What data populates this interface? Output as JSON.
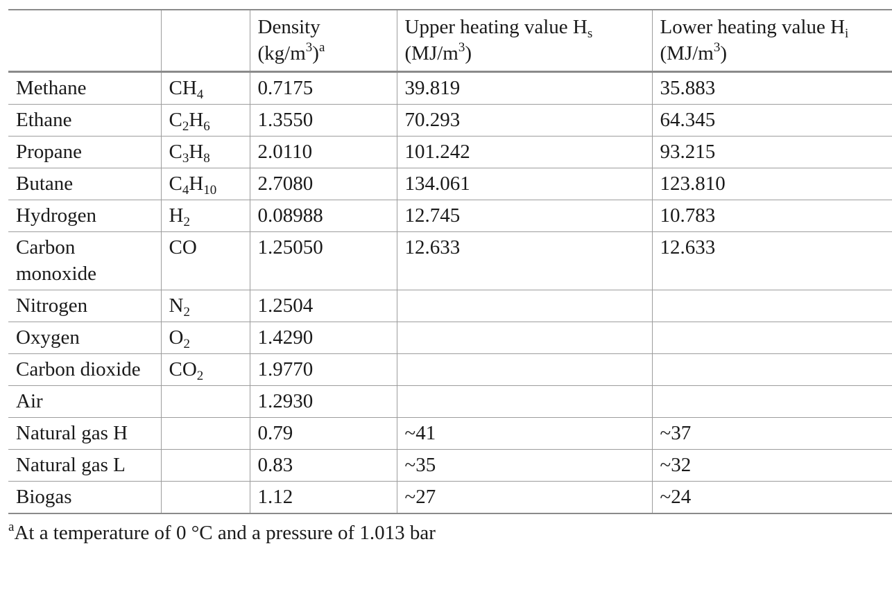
{
  "header": {
    "col0": "",
    "col1": "",
    "density": {
      "label": "Density",
      "unit_pre": "(kg/m",
      "unit_exp": "3",
      "unit_post": ")",
      "footnote_mark": "a"
    },
    "upper": {
      "label": "Upper heating value H",
      "sub": "s",
      "unit_pre": "(MJ/m",
      "unit_exp": "3",
      "unit_post": ")"
    },
    "lower": {
      "label": "Lower heating value H",
      "sub": "i",
      "unit_pre": "(MJ/m",
      "unit_exp": "3",
      "unit_post": ")"
    }
  },
  "rows": [
    {
      "name": "Methane",
      "formula": [
        [
          "CH",
          "4"
        ]
      ],
      "density": "0.7175",
      "upper": "39.819",
      "lower": "35.883"
    },
    {
      "name": "Ethane",
      "formula": [
        [
          "C",
          "2"
        ],
        [
          "H",
          "6"
        ]
      ],
      "density": "1.3550",
      "upper": "70.293",
      "lower": "64.345"
    },
    {
      "name": "Propane",
      "formula": [
        [
          "C",
          "3"
        ],
        [
          "H",
          "8"
        ]
      ],
      "density": "2.0110",
      "upper": "101.242",
      "lower": "93.215"
    },
    {
      "name": "Butane",
      "formula": [
        [
          "C",
          "4"
        ],
        [
          "H",
          "10"
        ]
      ],
      "density": "2.7080",
      "upper": "134.061",
      "lower": "123.810"
    },
    {
      "name": "Hydrogen",
      "formula": [
        [
          "H",
          "2"
        ]
      ],
      "density": "0.08988",
      "upper": "12.745",
      "lower": "10.783"
    },
    {
      "name": "Carbon monoxide",
      "formula": [
        [
          "CO",
          ""
        ]
      ],
      "density": "1.25050",
      "upper": "12.633",
      "lower": "12.633"
    },
    {
      "name": "Nitrogen",
      "formula": [
        [
          "N",
          "2"
        ]
      ],
      "density": "1.2504",
      "upper": "",
      "lower": ""
    },
    {
      "name": "Oxygen",
      "formula": [
        [
          "O",
          "2"
        ]
      ],
      "density": "1.4290",
      "upper": "",
      "lower": ""
    },
    {
      "name": "Carbon dioxide",
      "formula": [
        [
          "CO",
          "2"
        ]
      ],
      "density": "1.9770",
      "upper": "",
      "lower": ""
    },
    {
      "name": "Air",
      "formula": [],
      "density": "1.2930",
      "upper": "",
      "lower": ""
    },
    {
      "name": "Natural gas H",
      "formula": [],
      "density": "0.79",
      "upper": "~41",
      "lower": "~37"
    },
    {
      "name": "Natural gas L",
      "formula": [],
      "density": "0.83",
      "upper": "~35",
      "lower": "~32"
    },
    {
      "name": "Biogas",
      "formula": [],
      "density": "1.12",
      "upper": "~27",
      "lower": "~24"
    }
  ],
  "footnote": {
    "mark": "a",
    "text": "At a temperature of 0 °C and a pressure of 1.013 bar"
  }
}
